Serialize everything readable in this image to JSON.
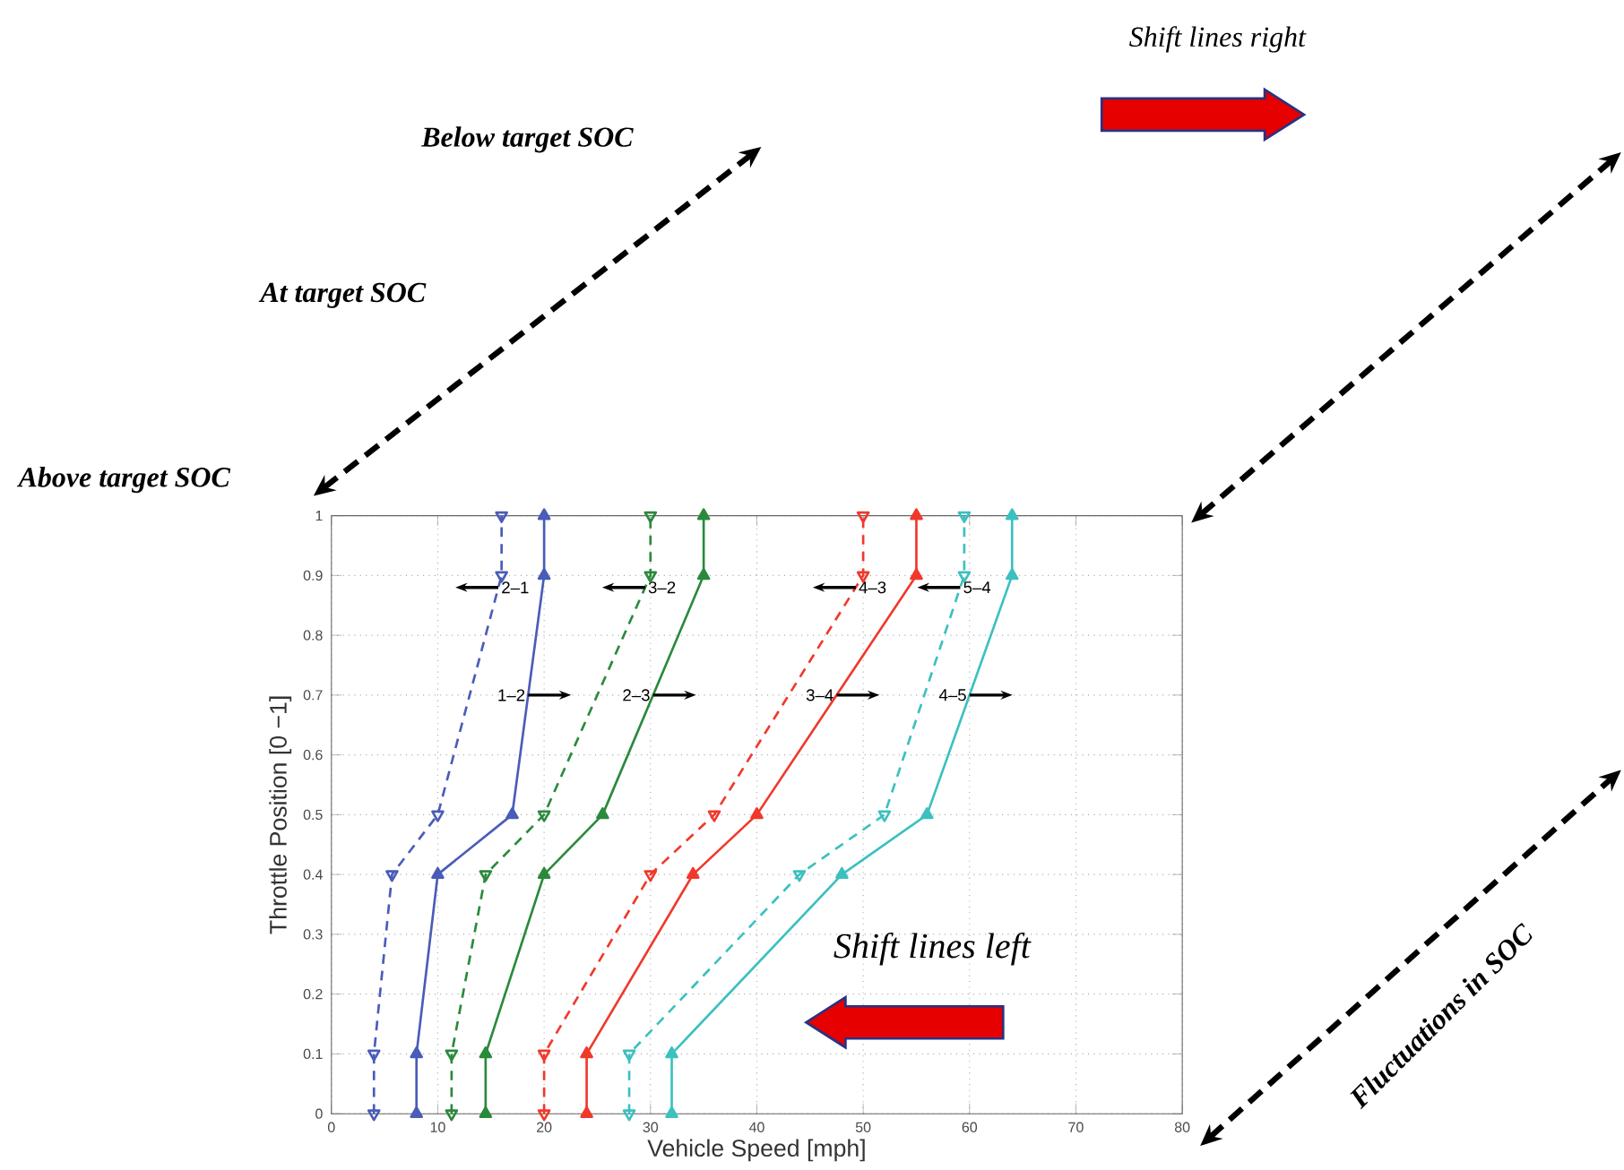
{
  "chart_data": {
    "type": "line",
    "xlabel": "Vehicle Speed [mph]",
    "ylabel": "Throttle Position [0 −1]",
    "xlim": [
      0,
      80
    ],
    "ylim": [
      0,
      1
    ],
    "xticks": [
      0,
      10,
      20,
      30,
      40,
      50,
      60,
      70,
      80
    ],
    "yticks": [
      0,
      {
        "value": 0.1,
        "label": "0.1"
      },
      {
        "value": 0.2,
        "label": "0.2"
      },
      {
        "value": 0.3,
        "label": "0.3"
      },
      {
        "value": 0.4,
        "label": "0.4"
      },
      {
        "value": 0.5,
        "label": "0.5"
      },
      {
        "value": 0.6,
        "label": "0.6"
      },
      {
        "value": 0.7,
        "label": "0.7"
      },
      {
        "value": 0.8,
        "label": "0.8"
      },
      {
        "value": 0.9,
        "label": "0.9"
      },
      1
    ],
    "grid": true,
    "legend": false,
    "marker": "triangle",
    "series": [
      {
        "name": "1–2",
        "color": "#4a5cb8",
        "line_style": "solid",
        "x": [
          8,
          8,
          10,
          17,
          20,
          20
        ],
        "values": [
          0,
          0.1,
          0.4,
          0.5,
          0.9,
          1
        ]
      },
      {
        "name": "2–1",
        "color": "#4a5cb8",
        "line_style": "dashed",
        "x": [
          4,
          4,
          5.7,
          10,
          16,
          16
        ],
        "values": [
          0,
          0.1,
          0.4,
          0.5,
          0.9,
          1
        ]
      },
      {
        "name": "2–3",
        "color": "#2a8a3c",
        "line_style": "solid",
        "x": [
          14.5,
          14.5,
          20,
          25.5,
          35,
          35
        ],
        "values": [
          0,
          0.1,
          0.4,
          0.5,
          0.9,
          1
        ]
      },
      {
        "name": "3–2",
        "color": "#2a8a3c",
        "line_style": "dashed",
        "x": [
          11.3,
          11.3,
          14.5,
          20,
          30,
          30
        ],
        "values": [
          0,
          0.1,
          0.4,
          0.5,
          0.9,
          1
        ]
      },
      {
        "name": "3–4",
        "color": "#f0392b",
        "line_style": "solid",
        "x": [
          24,
          24,
          34,
          40,
          55,
          55
        ],
        "values": [
          0,
          0.1,
          0.4,
          0.5,
          0.9,
          1
        ]
      },
      {
        "name": "4–3",
        "color": "#f0392b",
        "line_style": "dashed",
        "x": [
          20,
          20,
          30,
          36,
          50,
          50
        ],
        "values": [
          0,
          0.1,
          0.4,
          0.5,
          0.9,
          1
        ]
      },
      {
        "name": "4–5",
        "color": "#3cc0c0",
        "line_style": "solid",
        "x": [
          32,
          32,
          48,
          56,
          64,
          64
        ],
        "values": [
          0,
          0.1,
          0.4,
          0.5,
          0.9,
          1
        ]
      },
      {
        "name": "5–4",
        "color": "#3cc0c0",
        "line_style": "dashed",
        "x": [
          28,
          28,
          44,
          52,
          59.5,
          59.5
        ],
        "values": [
          0,
          0.1,
          0.4,
          0.5,
          0.9,
          1
        ]
      }
    ],
    "annotations": [
      "Below target SOC",
      "At target SOC",
      "Above target SOC",
      "Shift lines right",
      "Shift lines left",
      "Fluctuations in SOC"
    ]
  }
}
